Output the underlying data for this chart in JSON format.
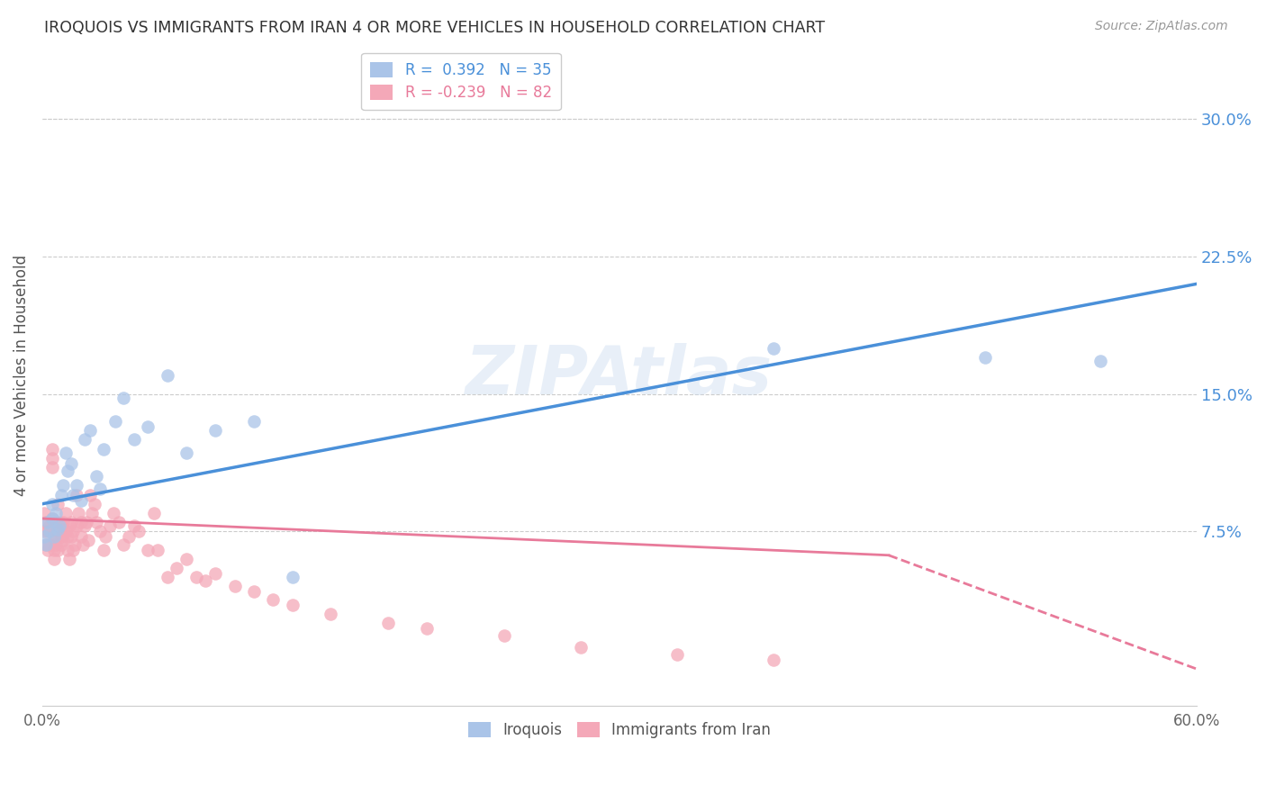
{
  "title": "IROQUOIS VS IMMIGRANTS FROM IRAN 4 OR MORE VEHICLES IN HOUSEHOLD CORRELATION CHART",
  "source": "Source: ZipAtlas.com",
  "ylabel": "4 or more Vehicles in Household",
  "xlim": [
    0.0,
    0.6
  ],
  "ylim": [
    -0.02,
    0.34
  ],
  "yticks": [
    0.075,
    0.15,
    0.225,
    0.3
  ],
  "ytick_labels": [
    "7.5%",
    "15.0%",
    "22.5%",
    "30.0%"
  ],
  "xtick_positions": [
    0.0,
    0.1,
    0.2,
    0.3,
    0.4,
    0.5,
    0.6
  ],
  "xtick_labels": [
    "0.0%",
    "",
    "",
    "",
    "",
    "",
    "60.0%"
  ],
  "iroquois_color": "#aac4e8",
  "iran_color": "#f4a8b8",
  "iroquois_line_color": "#4a90d9",
  "iran_line_color": "#e87a9a",
  "watermark": "ZIPAtlas",
  "legend_label_iroquois": "R =  0.392   N = 35",
  "legend_label_iran": "R = -0.239   N = 82",
  "bottom_legend_iroquois": "Iroquois",
  "bottom_legend_iran": "Immigrants from Iran",
  "iroquois_x": [
    0.001,
    0.002,
    0.003,
    0.004,
    0.005,
    0.005,
    0.006,
    0.007,
    0.008,
    0.009,
    0.01,
    0.011,
    0.012,
    0.013,
    0.015,
    0.016,
    0.018,
    0.02,
    0.022,
    0.025,
    0.028,
    0.03,
    0.032,
    0.038,
    0.042,
    0.048,
    0.055,
    0.065,
    0.075,
    0.09,
    0.11,
    0.13,
    0.38,
    0.49,
    0.55
  ],
  "iroquois_y": [
    0.072,
    0.068,
    0.08,
    0.075,
    0.082,
    0.09,
    0.072,
    0.085,
    0.076,
    0.078,
    0.095,
    0.1,
    0.118,
    0.108,
    0.112,
    0.095,
    0.1,
    0.092,
    0.125,
    0.13,
    0.105,
    0.098,
    0.12,
    0.135,
    0.148,
    0.125,
    0.132,
    0.16,
    0.118,
    0.13,
    0.135,
    0.05,
    0.175,
    0.17,
    0.168
  ],
  "iran_x": [
    0.001,
    0.001,
    0.002,
    0.002,
    0.003,
    0.003,
    0.004,
    0.004,
    0.005,
    0.005,
    0.005,
    0.005,
    0.006,
    0.006,
    0.006,
    0.007,
    0.007,
    0.007,
    0.008,
    0.008,
    0.008,
    0.009,
    0.009,
    0.01,
    0.01,
    0.01,
    0.011,
    0.011,
    0.012,
    0.012,
    0.013,
    0.013,
    0.014,
    0.014,
    0.015,
    0.015,
    0.016,
    0.016,
    0.017,
    0.018,
    0.018,
    0.019,
    0.02,
    0.02,
    0.021,
    0.022,
    0.023,
    0.024,
    0.025,
    0.026,
    0.027,
    0.028,
    0.03,
    0.032,
    0.033,
    0.035,
    0.037,
    0.04,
    0.042,
    0.045,
    0.048,
    0.05,
    0.055,
    0.058,
    0.06,
    0.065,
    0.07,
    0.075,
    0.08,
    0.085,
    0.09,
    0.1,
    0.11,
    0.12,
    0.13,
    0.15,
    0.18,
    0.2,
    0.24,
    0.28,
    0.33,
    0.38
  ],
  "iran_y": [
    0.085,
    0.075,
    0.068,
    0.08,
    0.075,
    0.065,
    0.068,
    0.078,
    0.12,
    0.115,
    0.11,
    0.082,
    0.07,
    0.065,
    0.06,
    0.072,
    0.068,
    0.08,
    0.075,
    0.065,
    0.09,
    0.08,
    0.075,
    0.068,
    0.072,
    0.078,
    0.08,
    0.07,
    0.085,
    0.075,
    0.065,
    0.072,
    0.06,
    0.078,
    0.08,
    0.072,
    0.075,
    0.065,
    0.068,
    0.078,
    0.095,
    0.085,
    0.08,
    0.072,
    0.068,
    0.078,
    0.08,
    0.07,
    0.095,
    0.085,
    0.09,
    0.08,
    0.075,
    0.065,
    0.072,
    0.078,
    0.085,
    0.08,
    0.068,
    0.072,
    0.078,
    0.075,
    0.065,
    0.085,
    0.065,
    0.05,
    0.055,
    0.06,
    0.05,
    0.048,
    0.052,
    0.045,
    0.042,
    0.038,
    0.035,
    0.03,
    0.025,
    0.022,
    0.018,
    0.012,
    0.008,
    0.005
  ]
}
